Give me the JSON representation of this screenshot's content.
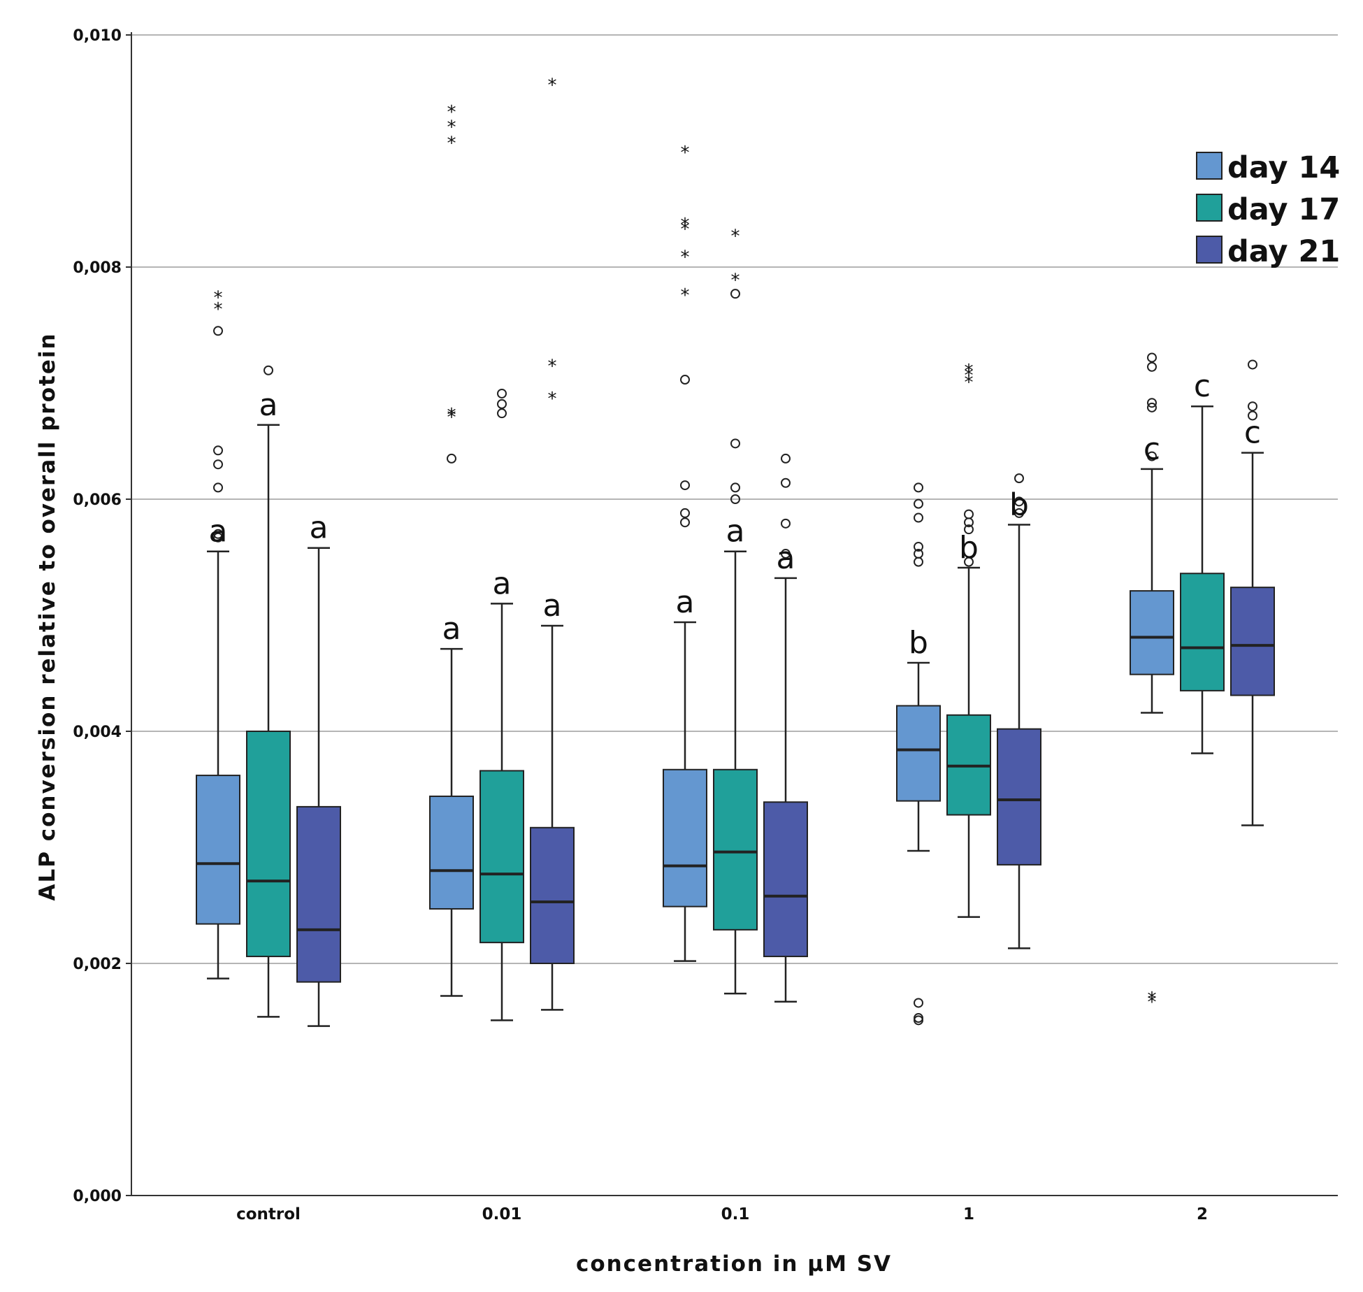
{
  "chart_data": {
    "type": "boxplot",
    "xlabel": "concentration in µM SV",
    "ylabel": "ALP conversion relative to overall protein",
    "ylim": [
      0,
      0.01
    ],
    "yticks": [
      {
        "value": 0.0,
        "label": "0,000"
      },
      {
        "value": 0.002,
        "label": "0,002"
      },
      {
        "value": 0.004,
        "label": "0,004"
      },
      {
        "value": 0.006,
        "label": "0,006"
      },
      {
        "value": 0.008,
        "label": "0,008"
      },
      {
        "value": 0.01,
        "label": "0,010"
      }
    ],
    "grid": "horizontal at 0,002 intervals",
    "legend_position": "top-right",
    "categories": [
      "control",
      "0.01",
      "0.1",
      "1",
      "2"
    ],
    "series": [
      {
        "name": "day 14",
        "color": "#6497d0",
        "boxes": [
          {
            "whisker_low": 0.00187,
            "q1": 0.00234,
            "median": 0.00286,
            "q3": 0.00362,
            "whisker_high": 0.00555,
            "letter": "a",
            "outliers": [
              0.00567,
              0.0057,
              0.0061,
              0.0063,
              0.00642,
              0.00745
            ],
            "extremes": [
              0.00765,
              0.00775
            ]
          },
          {
            "whisker_low": 0.00172,
            "q1": 0.00247,
            "median": 0.0028,
            "q3": 0.00344,
            "whisker_high": 0.00471,
            "letter": "a",
            "outliers": [
              0.00635
            ],
            "extremes": [
              0.00672,
              0.00674,
              0.00908,
              0.00922,
              0.00935
            ]
          },
          {
            "whisker_low": 0.00202,
            "q1": 0.00249,
            "median": 0.00284,
            "q3": 0.00367,
            "whisker_high": 0.00494,
            "letter": "a",
            "outliers": [
              0.0058,
              0.00588,
              0.00612,
              0.00703
            ],
            "extremes": [
              0.00777,
              0.0081,
              0.00834,
              0.00838,
              0.009
            ]
          },
          {
            "whisker_low": 0.00297,
            "q1": 0.0034,
            "median": 0.00384,
            "q3": 0.00422,
            "whisker_high": 0.00459,
            "letter": "b",
            "outliers": [
              0.00151,
              0.00153,
              0.00166,
              0.00546,
              0.00553,
              0.00559,
              0.00584,
              0.00596,
              0.0061
            ],
            "extremes": []
          },
          {
            "whisker_low": 0.00416,
            "q1": 0.00449,
            "median": 0.00481,
            "q3": 0.00521,
            "whisker_high": 0.00626,
            "letter": "c",
            "outliers": [
              0.00637,
              0.00679,
              0.00683,
              0.00714,
              0.00722
            ],
            "extremes": [
              0.00168,
              0.00171
            ]
          }
        ]
      },
      {
        "name": "day 17",
        "color": "#20a09a",
        "boxes": [
          {
            "whisker_low": 0.00154,
            "q1": 0.00206,
            "median": 0.00271,
            "q3": 0.004,
            "whisker_high": 0.00664,
            "letter": "a",
            "outliers": [
              0.00711
            ],
            "extremes": []
          },
          {
            "whisker_low": 0.00151,
            "q1": 0.00218,
            "median": 0.00277,
            "q3": 0.00366,
            "whisker_high": 0.0051,
            "letter": "a",
            "outliers": [
              0.00674,
              0.00682,
              0.00691
            ],
            "extremes": []
          },
          {
            "whisker_low": 0.00174,
            "q1": 0.00229,
            "median": 0.00296,
            "q3": 0.00367,
            "whisker_high": 0.00555,
            "letter": "a",
            "outliers": [
              0.006,
              0.0061,
              0.00648,
              0.00777
            ],
            "extremes": [
              0.0079,
              0.00828
            ]
          },
          {
            "whisker_low": 0.0024,
            "q1": 0.00328,
            "median": 0.0037,
            "q3": 0.00414,
            "whisker_high": 0.00541,
            "letter": "b",
            "outliers": [
              0.00546,
              0.00574,
              0.0058,
              0.00587
            ],
            "extremes": [
              0.00702,
              0.00708,
              0.00712
            ]
          },
          {
            "whisker_low": 0.00381,
            "q1": 0.00435,
            "median": 0.00472,
            "q3": 0.00536,
            "whisker_high": 0.0068,
            "letter": "c",
            "outliers": [],
            "extremes": []
          }
        ]
      },
      {
        "name": "day 21",
        "color": "#4d5ba8",
        "boxes": [
          {
            "whisker_low": 0.00146,
            "q1": 0.00184,
            "median": 0.00229,
            "q3": 0.00335,
            "whisker_high": 0.00558,
            "letter": "a",
            "outliers": [],
            "extremes": []
          },
          {
            "whisker_low": 0.0016,
            "q1": 0.002,
            "median": 0.00253,
            "q3": 0.00317,
            "whisker_high": 0.00491,
            "letter": "a",
            "outliers": [],
            "extremes": [
              0.00688,
              0.00716,
              0.00958
            ]
          },
          {
            "whisker_low": 0.00167,
            "q1": 0.00206,
            "median": 0.00258,
            "q3": 0.00339,
            "whisker_high": 0.00532,
            "letter": "a",
            "outliers": [
              0.00553,
              0.00579,
              0.00614,
              0.00635
            ],
            "extremes": []
          },
          {
            "whisker_low": 0.00213,
            "q1": 0.00285,
            "median": 0.00341,
            "q3": 0.00402,
            "whisker_high": 0.00578,
            "letter": "b",
            "outliers": [
              0.00588,
              0.00598,
              0.00618
            ],
            "extremes": []
          },
          {
            "whisker_low": 0.00319,
            "q1": 0.00431,
            "median": 0.00474,
            "q3": 0.00524,
            "whisker_high": 0.0064,
            "letter": "c",
            "outliers": [
              0.00672,
              0.0068,
              0.00716
            ],
            "extremes": []
          }
        ]
      }
    ]
  }
}
